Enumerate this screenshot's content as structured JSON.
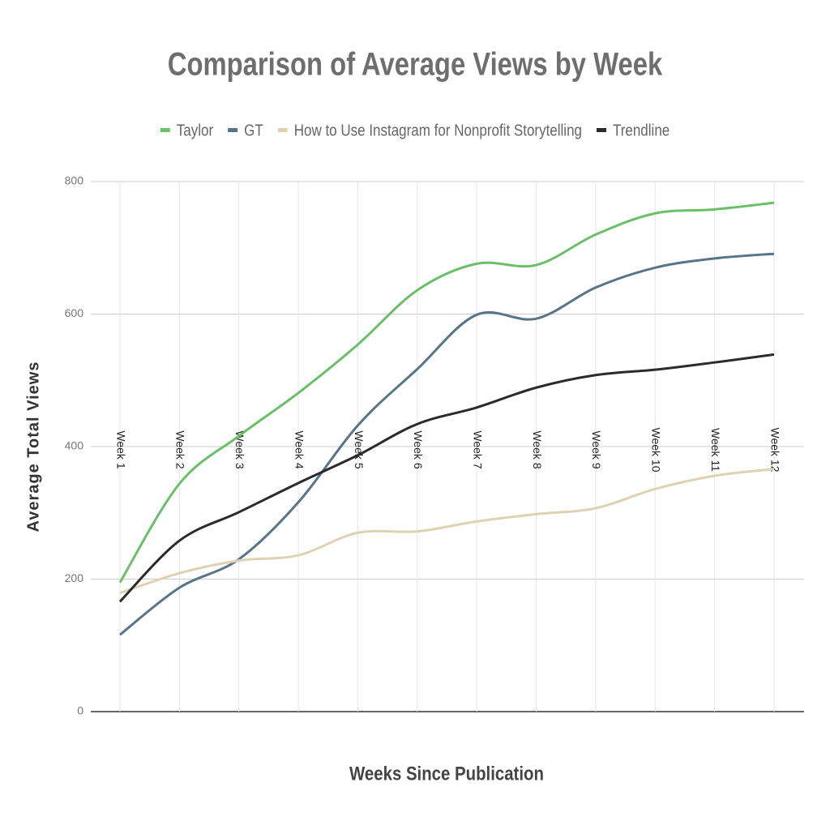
{
  "chart_data": {
    "type": "line",
    "title": "Comparison of Average Views by Week",
    "x_label": "Weeks Since Publication",
    "y_label": "Average Total Views",
    "categories": [
      "Week 1",
      "Week 2",
      "Week 3",
      "Week 4",
      "Week 5",
      "Week 6",
      "Week 7",
      "Week 8",
      "Week 9",
      "Week 10",
      "Week 11",
      "Week 12"
    ],
    "series": [
      {
        "name": "Taylor",
        "color": "#6abf69",
        "values": [
          195,
          344,
          416,
          481,
          554,
          636,
          676,
          674,
          720,
          752,
          758,
          768
        ]
      },
      {
        "name": "GT",
        "color": "#587487",
        "values": [
          116,
          187,
          230,
          316,
          432,
          517,
          599,
          593,
          640,
          670,
          684,
          691
        ]
      },
      {
        "name": "How to Use Instagram for Nonprofit Storytelling",
        "color": "#ddd3b3",
        "values": [
          179,
          209,
          228,
          236,
          270,
          272,
          287,
          298,
          307,
          336,
          356,
          366
        ]
      },
      {
        "name": "Trendline",
        "color": "#2b2b2b",
        "values": [
          166,
          258,
          301,
          345,
          387,
          434,
          459,
          489,
          508,
          516,
          527,
          539
        ]
      }
    ],
    "ylim": [
      0,
      800
    ],
    "yticks": [
      0,
      200,
      400,
      600,
      800
    ],
    "grid": true,
    "legend": "top",
    "smooth": true
  }
}
